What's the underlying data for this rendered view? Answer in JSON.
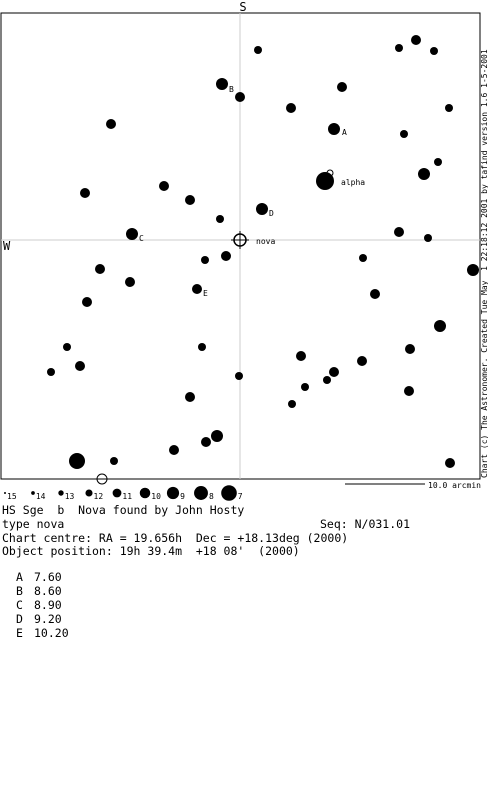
{
  "chart": {
    "south": "S",
    "west": "W",
    "nova_label": "nova",
    "alpha_label": "alpha",
    "star_labels": [
      "A",
      "B",
      "C",
      "D",
      "E"
    ],
    "mag_scale": [
      "15",
      "14",
      "13",
      "12",
      "11",
      "10",
      "9",
      "8",
      "7"
    ],
    "scale_bar": "10.0 arcmin",
    "credit": "Chart (c) The Astronomer. Created Tue May  1 22:18:12 2001 by tafind version 1.6 1-5-2001"
  },
  "info": {
    "title": "HS Sge  b  Nova found by John Hosty",
    "type": "type nova",
    "seq": "Seq: N/031.01",
    "centre": "Chart centre: RA = 19.656h  Dec = +18.13deg (2000)",
    "position": "Object position: 19h 39.4m  +18 08'  (2000)"
  },
  "comparison": {
    "rows": [
      [
        "A",
        "7.60"
      ],
      [
        "B",
        "8.60"
      ],
      [
        "C",
        "8.90"
      ],
      [
        "D",
        "9.20"
      ],
      [
        "E",
        "10.20"
      ]
    ]
  }
}
